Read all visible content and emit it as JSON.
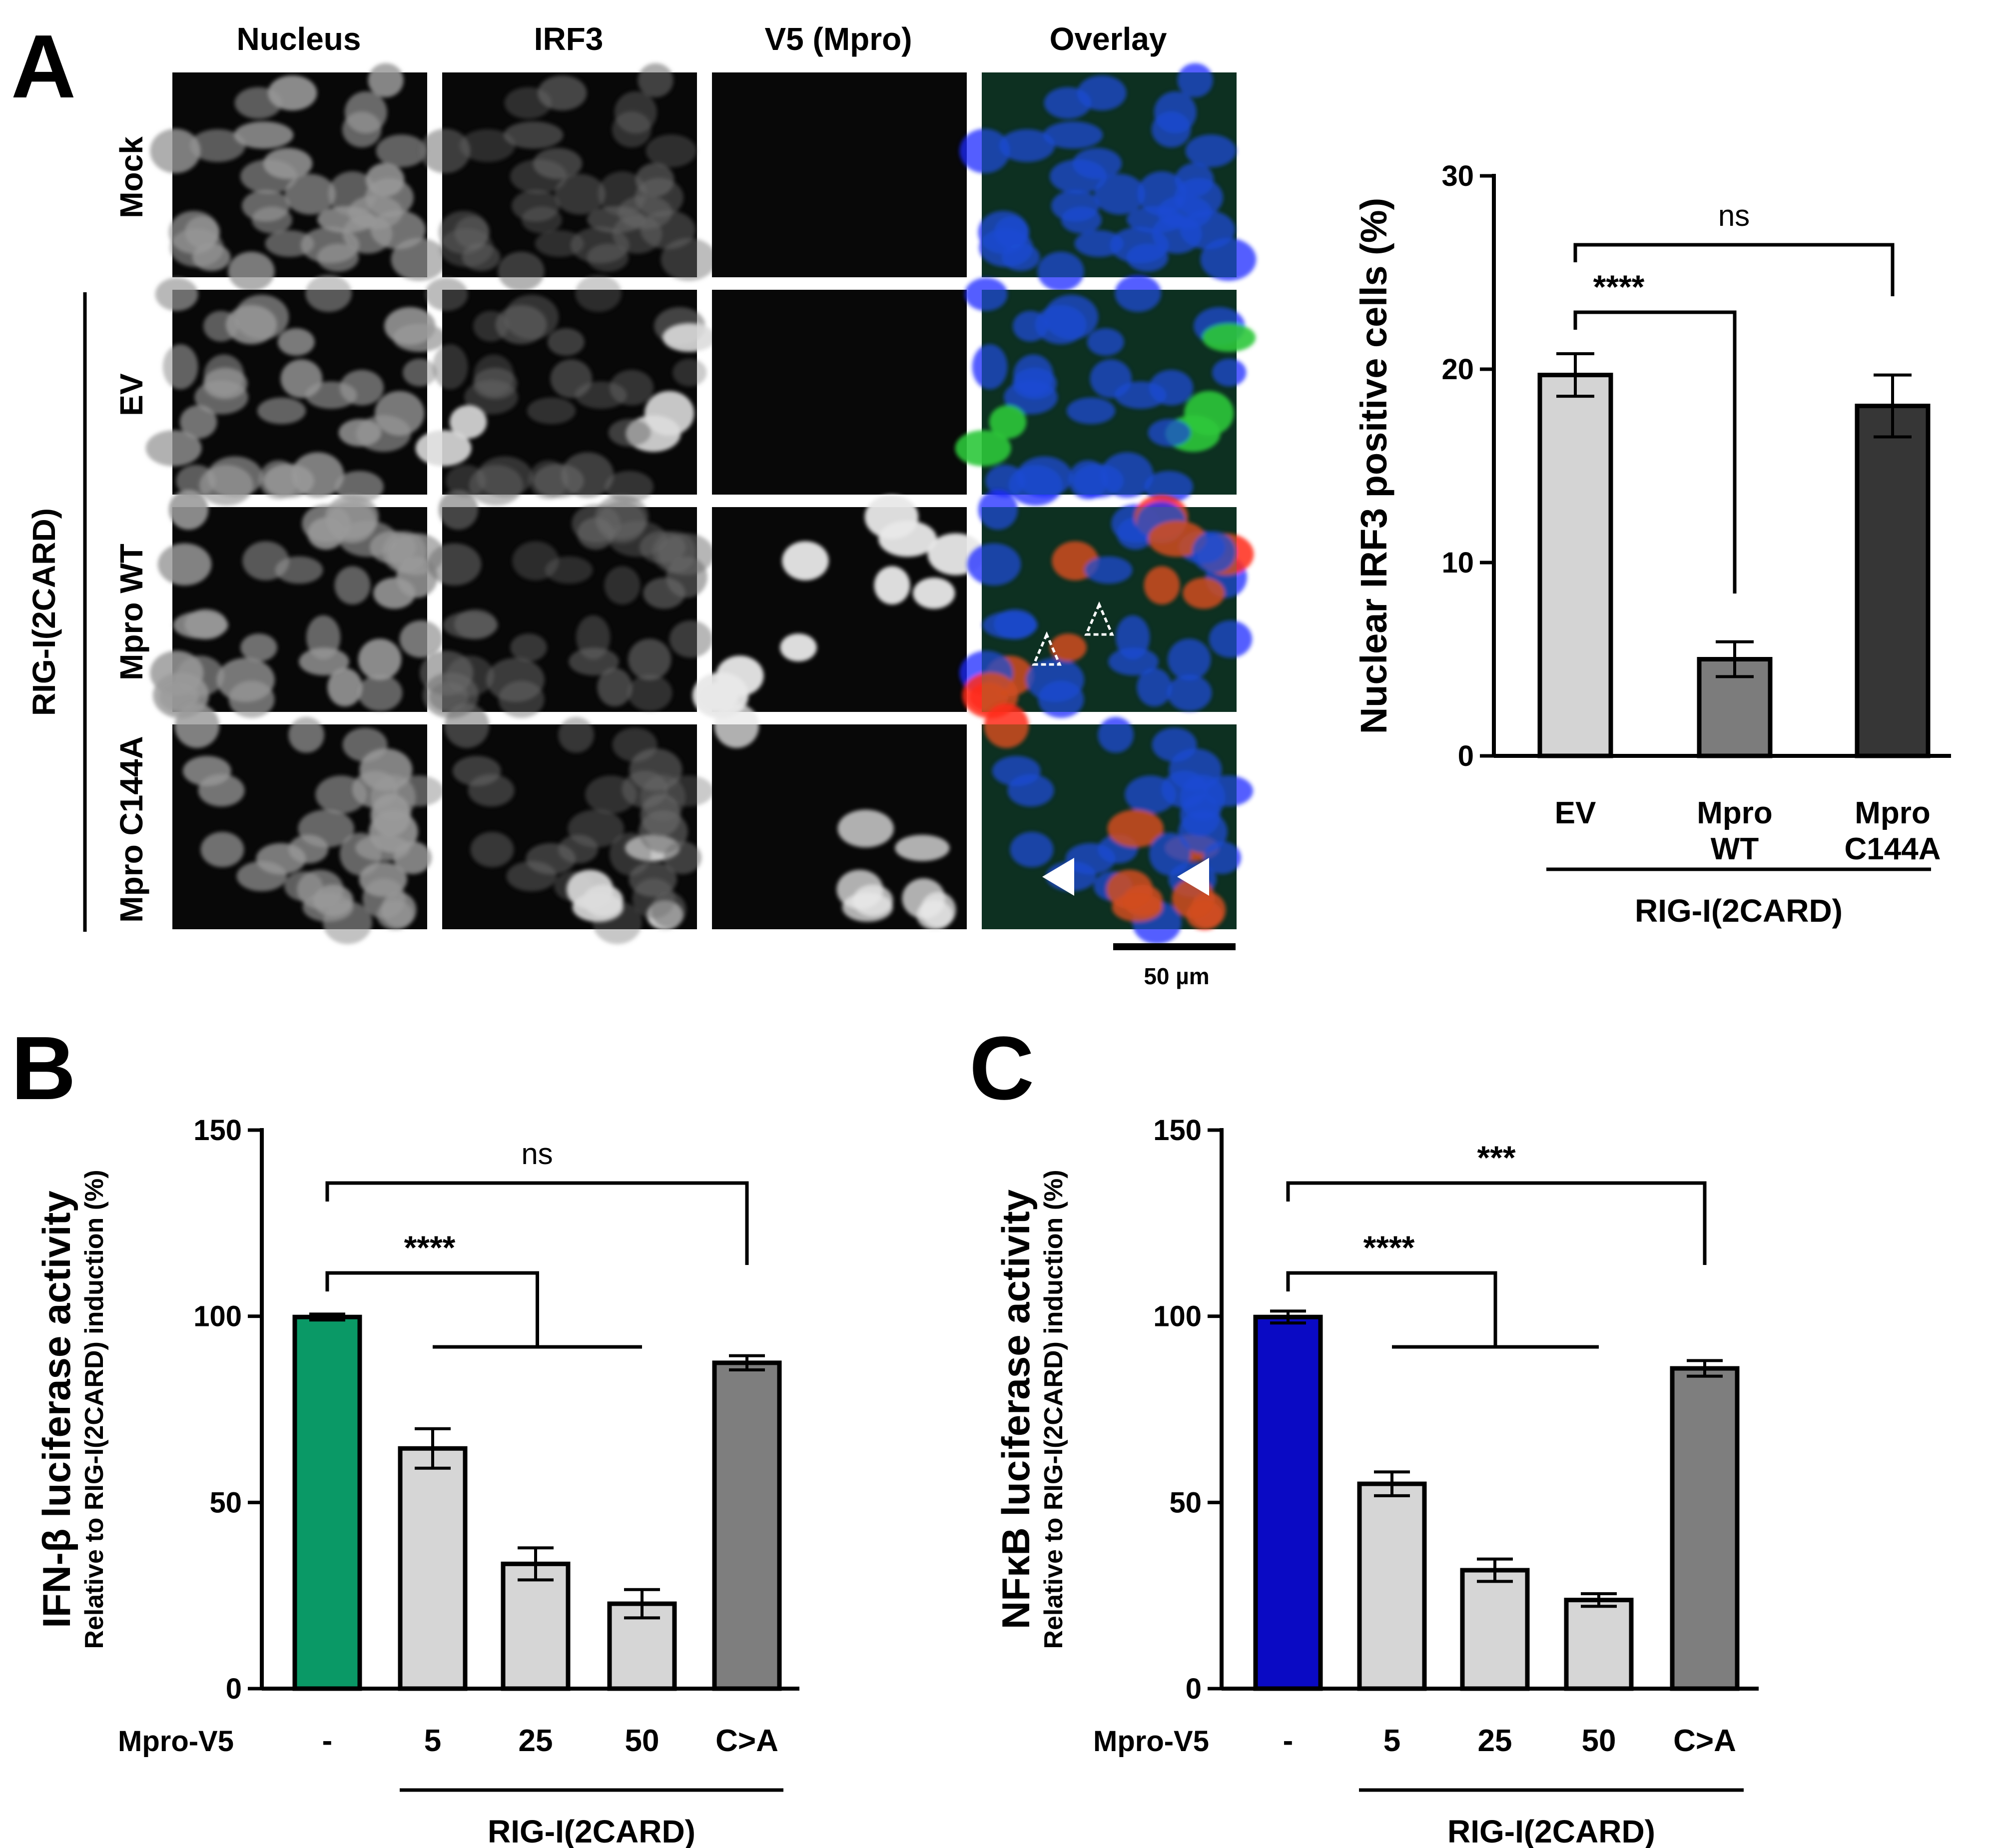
{
  "panels": {
    "A": {
      "letter": "A"
    },
    "B": {
      "letter": "B"
    },
    "C": {
      "letter": "C"
    }
  },
  "microscopy": {
    "column_headers": [
      "Nucleus",
      "IRF3",
      "V5 (Mpro)",
      "Overlay"
    ],
    "row_labels": [
      "Mock",
      "EV",
      "Mpro WT",
      "Mpro C144A"
    ],
    "group_label": "RIG-I(2CARD)",
    "scale_bar": "50 µm",
    "colors": {
      "nucleus": "#1a2aff",
      "irf3": "#2ec83a",
      "v5": "#ff2a1a"
    },
    "markers": {
      "mpro_wt": "open-dashed-arrowheads",
      "mpro_c144a": "filled-white-arrowheads"
    }
  },
  "chart_data": [
    {
      "id": "A-right",
      "type": "bar",
      "categories": [
        "EV",
        "Mpro\nWT",
        "Mpro\nC144A"
      ],
      "values": [
        19.7,
        5.0,
        18.1
      ],
      "errors": [
        1.1,
        0.9,
        1.6
      ],
      "colors": [
        "#d4d4d4",
        "#7c7c7c",
        "#363636"
      ],
      "ylabel": "Nuclear IRF3 positive cells (%)",
      "ylim": [
        0,
        30
      ],
      "yticks": [
        0,
        10,
        20,
        30
      ],
      "group_label": "RIG-I(2CARD)",
      "annotations": [
        {
          "from": 0,
          "to": 2,
          "text": "ns"
        },
        {
          "from": 0,
          "to": 1,
          "text": "****"
        }
      ]
    },
    {
      "id": "B",
      "type": "bar",
      "categories": [
        "-",
        "5",
        "25",
        "50",
        "C>A"
      ],
      "row_label": "Mpro-V5",
      "values": [
        99.8,
        64.5,
        33.5,
        22.8,
        87.5
      ],
      "errors": [
        0.8,
        5.3,
        4.3,
        3.8,
        1.9
      ],
      "colors": [
        "#0a9966",
        "#d6d6d6",
        "#d6d6d6",
        "#d6d6d6",
        "#7e7e7e"
      ],
      "ylabel": "IFN-β luciferase activity",
      "ylabel_sub": "Relative to RIG-I(2CARD) induction (%)",
      "ylim": [
        0,
        150
      ],
      "yticks": [
        0,
        50,
        100,
        150
      ],
      "group_label": "RIG-I(2CARD)",
      "annotations": [
        {
          "from": 0,
          "to": [
            1,
            3
          ],
          "text": "****"
        },
        {
          "from": 0,
          "to": 4,
          "text": "ns"
        }
      ]
    },
    {
      "id": "C",
      "type": "bar",
      "categories": [
        "-",
        "5",
        "25",
        "50",
        "C>A"
      ],
      "row_label": "Mpro-V5",
      "values": [
        99.8,
        55.0,
        31.8,
        23.8,
        86.0
      ],
      "errors": [
        1.6,
        3.2,
        3.0,
        1.7,
        2.1
      ],
      "colors": [
        "#0a0ac4",
        "#d6d6d6",
        "#d6d6d6",
        "#d6d6d6",
        "#7e7e7e"
      ],
      "ylabel": "NFκB luciferase activity",
      "ylabel_sub": "Relative to RIG-I(2CARD) induction (%)",
      "ylim": [
        0,
        150
      ],
      "yticks": [
        0,
        50,
        100,
        150
      ],
      "group_label": "RIG-I(2CARD)",
      "annotations": [
        {
          "from": 0,
          "to": [
            1,
            3
          ],
          "text": "****"
        },
        {
          "from": 0,
          "to": 4,
          "text": "***"
        }
      ]
    }
  ]
}
